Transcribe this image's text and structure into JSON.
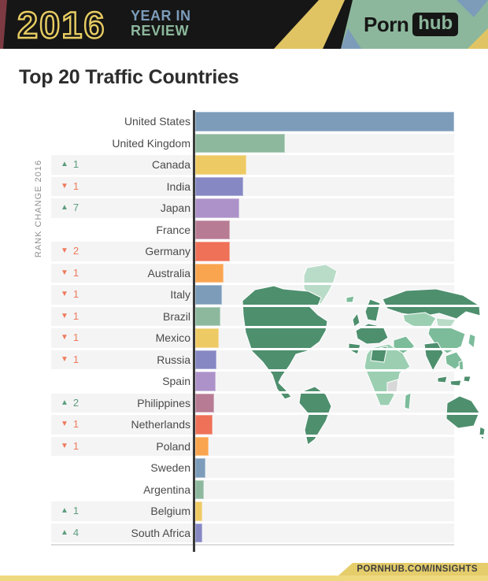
{
  "header": {
    "year": "2016",
    "tagline_line1": "YEAR IN",
    "tagline_line2": "REVIEW",
    "brand": {
      "part1": "Porn",
      "part2": "hub"
    }
  },
  "title": "Top 20 Traffic Countries",
  "left_axis_label": "RANK CHANGE 2016",
  "footer": {
    "url_text": "PORNHUB.COM/INSIGHTS"
  },
  "colors": {
    "header_bg": "#161616",
    "accent_yellow": "#e8cd62",
    "accent_blue": "#7c9cba",
    "accent_green": "#8cb79c",
    "accent_maroon": "#7d3a42",
    "rank_up": "#5d9d7b",
    "rank_down": "#ee7a5c",
    "row_strip": "#f4f4f5",
    "axis_line": "#3a3a3a",
    "label_text": "#4a4a4a",
    "footer_strip": "#eed97f",
    "footer_tab": "#e5cd6b",
    "bar_palette": [
      "#7c9cba",
      "#8db89e",
      "#eeca64",
      "#8588c3",
      "#ad92c9",
      "#b77b94",
      "#ee7158",
      "#f9a54f"
    ]
  },
  "map": {
    "description": "world map inset, countries shaded in greens by traffic",
    "shades": {
      "dark": "#4e8f6e",
      "medium": "#7cbc9a",
      "medium_light": "#9ccfb2",
      "light": "#b9dcc8",
      "pale": "#cfe8da",
      "gray": "#d8d8d8"
    }
  },
  "chart_data": {
    "type": "bar",
    "orientation": "horizontal",
    "title": "Top 20 Traffic Countries",
    "left_gutter_label": "RANK CHANGE 2016",
    "value_axis": "relative traffic volume (no numeric axis shown; lengths relative, United States = 100)",
    "legend": "none",
    "background_inset": "world map choropleth in green shades",
    "categories": [
      "United States",
      "United Kingdom",
      "Canada",
      "India",
      "Japan",
      "France",
      "Germany",
      "Australia",
      "Italy",
      "Brazil",
      "Mexico",
      "Russia",
      "Spain",
      "Philippines",
      "Netherlands",
      "Poland",
      "Sweden",
      "Argentina",
      "Belgium",
      "South Africa"
    ],
    "values_relative_to_us": [
      100,
      34.7,
      19.8,
      18.5,
      17.0,
      13.4,
      13.5,
      10.9,
      10.2,
      9.7,
      9.0,
      8.1,
      7.8,
      7.4,
      6.8,
      5.2,
      4.0,
      3.3,
      2.6,
      2.8
    ],
    "rank_changes": [
      0,
      0,
      1,
      -1,
      7,
      0,
      -2,
      -1,
      -1,
      -1,
      -1,
      -1,
      0,
      2,
      -1,
      -1,
      0,
      0,
      1,
      4
    ]
  }
}
